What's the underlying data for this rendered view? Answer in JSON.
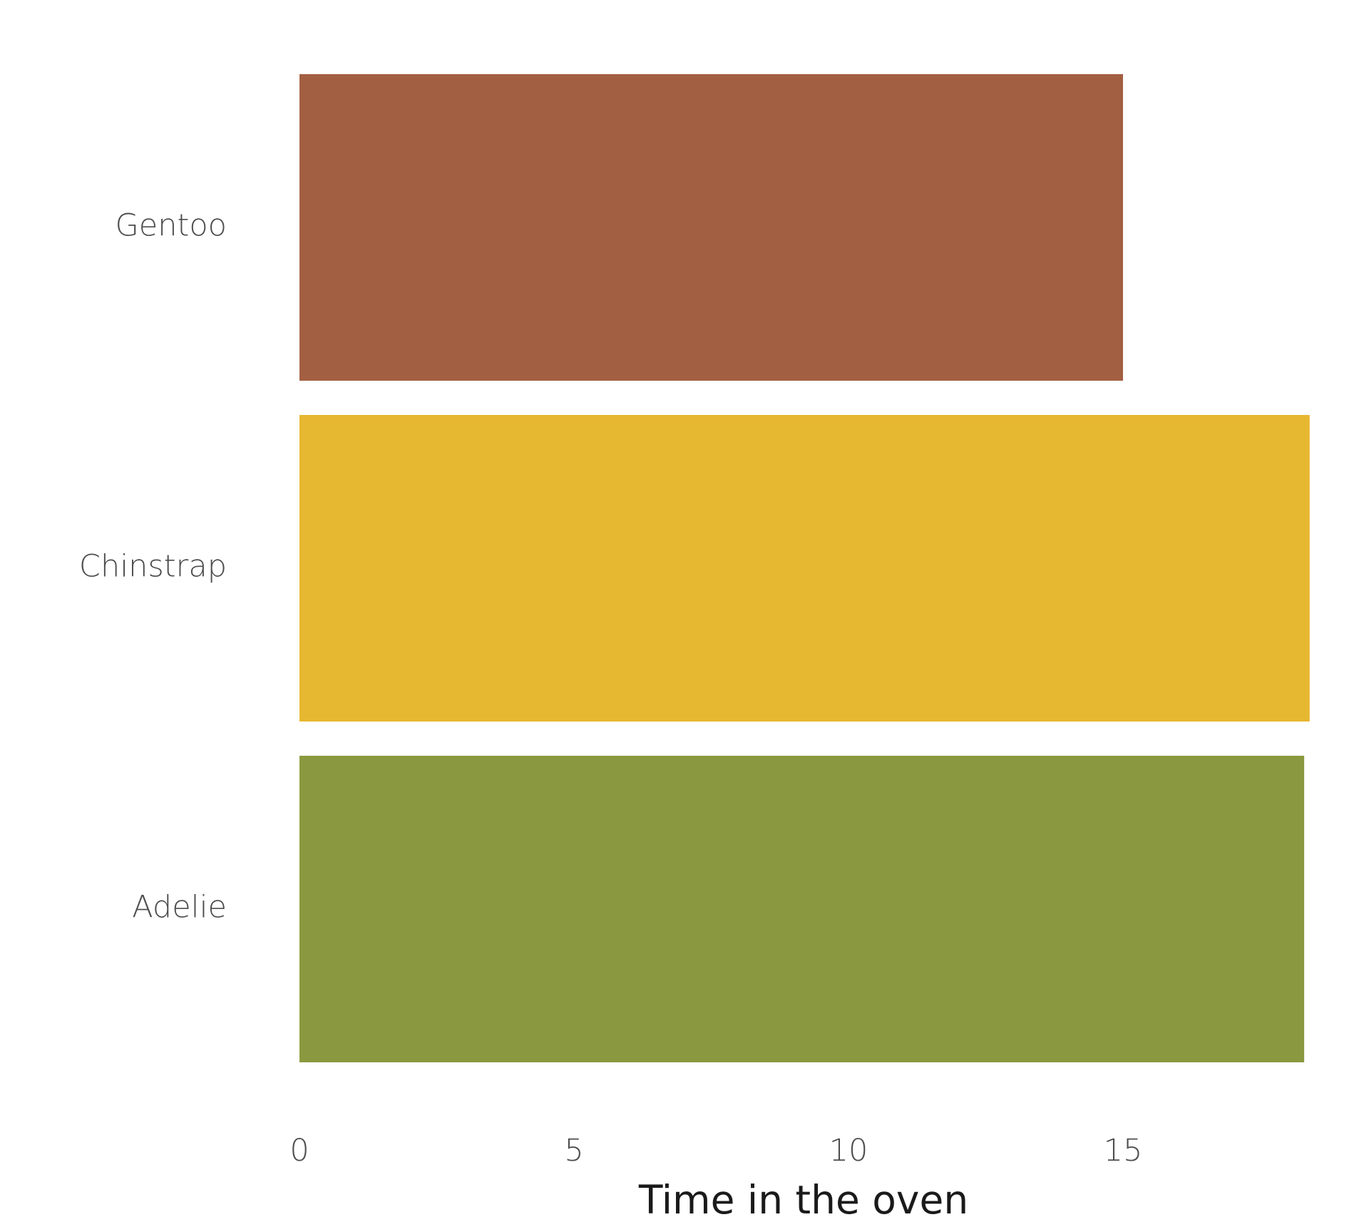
{
  "chart_data": {
    "type": "bar",
    "orientation": "horizontal",
    "title": "",
    "xlabel": "Time in the oven",
    "ylabel": "",
    "categories": [
      "Gentoo",
      "Chinstrap",
      "Adelie"
    ],
    "values": [
      15,
      18.4,
      18.3
    ],
    "colors": [
      "#A35F42",
      "#E6B730",
      "#8A993F"
    ],
    "xlim": [
      0,
      18.4
    ],
    "xticks": [
      0,
      5,
      10,
      15
    ],
    "xtick_labels": [
      "0",
      "5",
      "10",
      "15"
    ],
    "grid": false,
    "legend": "none"
  }
}
